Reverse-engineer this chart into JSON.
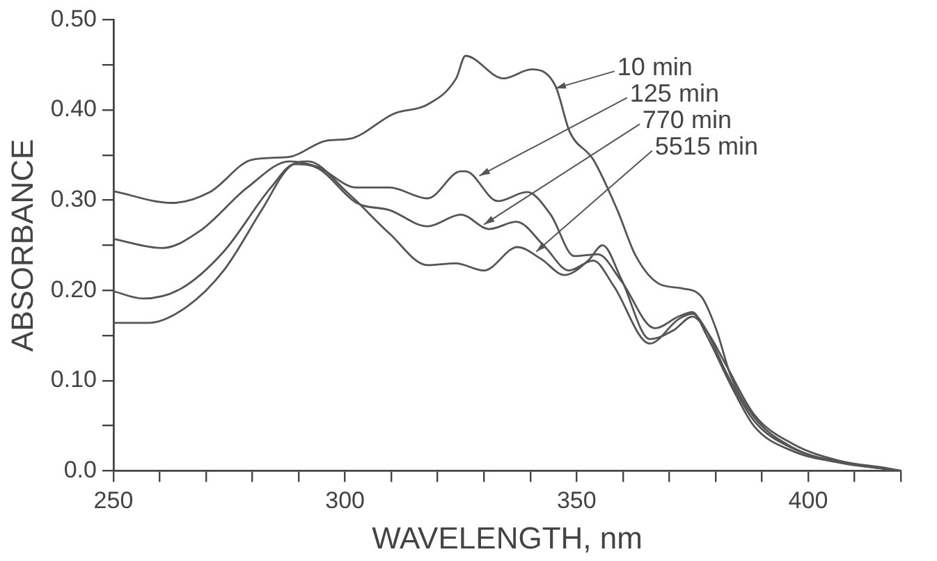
{
  "chart_data": {
    "type": "line",
    "xlabel": "WAVELENGTH, nm",
    "ylabel": "ABSORBANCE",
    "xlim": [
      250,
      420
    ],
    "xticks": [
      250,
      {
        "value": 260,
        "label": null
      },
      {
        "value": 270,
        "label": null
      },
      {
        "value": 280,
        "label": null
      },
      {
        "value": 290,
        "label": null
      },
      300,
      {
        "value": 310,
        "label": null
      },
      {
        "value": 320,
        "label": null
      },
      {
        "value": 330,
        "label": null
      },
      {
        "value": 340,
        "label": null
      },
      350,
      {
        "value": 360,
        "label": null
      },
      {
        "value": 370,
        "label": null
      },
      {
        "value": 380,
        "label": null
      },
      {
        "value": 390,
        "label": null
      },
      400,
      {
        "value": 410,
        "label": null
      },
      {
        "value": 420,
        "label": null
      }
    ],
    "ylim": [
      0,
      0.5
    ],
    "yticks": [
      {
        "value": 0,
        "label": "0.0"
      },
      {
        "value": 0.05,
        "label": null
      },
      {
        "value": 0.1,
        "label": "0.10"
      },
      {
        "value": 0.15,
        "label": null
      },
      {
        "value": 0.2,
        "label": "0.20"
      },
      {
        "value": 0.25,
        "label": null
      },
      {
        "value": 0.3,
        "label": "0.30"
      },
      {
        "value": 0.35,
        "label": null
      },
      {
        "value": 0.4,
        "label": "0.40"
      },
      {
        "value": 0.45,
        "label": null
      },
      {
        "value": 0.5,
        "label": "0.50"
      }
    ],
    "grid": false,
    "legend": false,
    "marker": "none",
    "line_style": "solid",
    "series": [
      {
        "color": "#555555",
        "x": [
          250,
          262.6,
          270.8,
          280,
          288,
          296,
          301,
          310.6,
          317.8,
          324,
          326,
          334.2,
          340.3,
          345.4,
          348.5,
          353.6,
          358.8,
          362.8,
          367.9,
          373,
          377.1,
          380.2,
          383.3,
          388.4,
          396.6,
          406.8,
          417,
          420
        ],
        "values": [
          0.31,
          0.297,
          0.309,
          0.345,
          0.348,
          0.366,
          0.368,
          0.396,
          0.406,
          0.435,
          0.46,
          0.435,
          0.445,
          0.427,
          0.376,
          0.345,
          0.289,
          0.238,
          0.207,
          0.202,
          0.192,
          0.156,
          0.105,
          0.059,
          0.026,
          0.009,
          0.002,
          0
        ]
      },
      {
        "color": "#555555",
        "x": [
          250,
          260.5,
          268.7,
          278.9,
          288,
          294,
          302.5,
          309.6,
          317.8,
          325,
          326,
          333,
          339.3,
          344.4,
          349.5,
          354.6,
          359.7,
          366.9,
          372,
          375,
          378,
          383.3,
          388.4,
          396.6,
          406.8,
          417,
          420
        ],
        "values": [
          0.257,
          0.247,
          0.266,
          0.314,
          0.343,
          0.337,
          0.314,
          0.314,
          0.302,
          0.332,
          0.332,
          0.299,
          0.309,
          0.284,
          0.238,
          0.24,
          0.21,
          0.158,
          0.171,
          0.176,
          0.151,
          0.095,
          0.049,
          0.022,
          0.009,
          0.002,
          0
        ]
      },
      {
        "color": "#555555",
        "x": [
          250,
          256.4,
          264.6,
          273.8,
          284,
          289.2,
          294.3,
          302.5,
          309.6,
          317.8,
          325,
          331.1,
          337,
          343.2,
          348.3,
          353.6,
          358,
          365.8,
          372,
          375,
          378,
          382.2,
          388.4,
          396.6,
          406.8,
          417,
          420
        ],
        "values": [
          0.199,
          0.191,
          0.202,
          0.243,
          0.314,
          0.34,
          0.335,
          0.297,
          0.289,
          0.271,
          0.284,
          0.268,
          0.276,
          0.248,
          0.222,
          0.233,
          0.205,
          0.141,
          0.168,
          0.174,
          0.156,
          0.11,
          0.055,
          0.025,
          0.01,
          0.002,
          0
        ]
      },
      {
        "color": "#555555",
        "x": [
          250,
          257.5,
          265.6,
          273.8,
          282,
          288,
          292,
          300.4,
          309.6,
          317.8,
          323.9,
          330,
          337.2,
          342.3,
          347.4,
          352.5,
          355.6,
          359.7,
          365.8,
          371,
          375,
          378.6,
          382.2,
          388.4,
          396.6,
          406.8,
          417,
          420
        ],
        "values": [
          0.164,
          0.164,
          0.181,
          0.222,
          0.289,
          0.337,
          0.343,
          0.309,
          0.263,
          0.228,
          0.23,
          0.222,
          0.248,
          0.235,
          0.217,
          0.233,
          0.25,
          0.212,
          0.146,
          0.156,
          0.171,
          0.151,
          0.118,
          0.062,
          0.03,
          0.011,
          0.003,
          0
        ]
      }
    ],
    "annotations": [
      {
        "text": "10 min",
        "x": 345.4,
        "y": 0.424
      },
      {
        "text": "125 min",
        "x": 329,
        "y": 0.327
      },
      {
        "text": "770 min",
        "x": 330,
        "y": 0.273
      },
      {
        "text": "5515 min",
        "x": 341.3,
        "y": 0.243
      }
    ]
  }
}
